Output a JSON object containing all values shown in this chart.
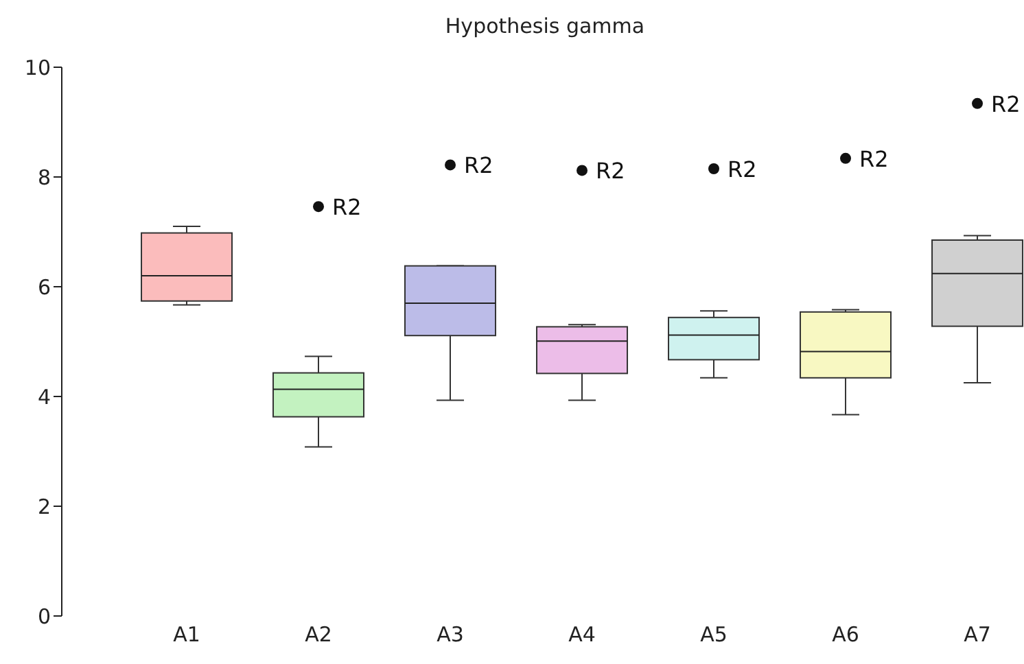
{
  "chart_data": {
    "type": "box",
    "title": "Hypothesis gamma",
    "categories": [
      "A1",
      "A2",
      "A3",
      "A4",
      "A5",
      "A6",
      "A7"
    ],
    "colors": [
      "#fbbcbc",
      "#c3f2c0",
      "#bcbce8",
      "#ecbde8",
      "#cff2ef",
      "#f8f8c2",
      "#d0d0d0"
    ],
    "boxes": [
      {
        "low": 5.67,
        "q1": 5.74,
        "median": 6.2,
        "q3": 6.98,
        "high": 7.1
      },
      {
        "low": 3.08,
        "q1": 3.63,
        "median": 4.13,
        "q3": 4.43,
        "high": 4.73,
        "outliers": [
          7.46
        ]
      },
      {
        "low": 3.93,
        "q1": 5.11,
        "median": 5.7,
        "q3": 6.38,
        "high": 6.38,
        "outliers": [
          8.22
        ]
      },
      {
        "low": 3.93,
        "q1": 4.42,
        "median": 5.01,
        "q3": 5.27,
        "high": 5.31,
        "outliers": [
          8.12
        ]
      },
      {
        "low": 4.34,
        "q1": 4.67,
        "median": 5.12,
        "q3": 5.44,
        "high": 5.56,
        "outliers": [
          8.15
        ]
      },
      {
        "low": 3.67,
        "q1": 4.34,
        "median": 4.82,
        "q3": 5.54,
        "high": 5.58,
        "outliers": [
          8.34
        ]
      },
      {
        "low": 4.25,
        "q1": 5.28,
        "median": 6.24,
        "q3": 6.85,
        "high": 6.93,
        "outliers": [
          9.34
        ]
      }
    ],
    "annotations": [
      "R2",
      "R2",
      "R2",
      "R2",
      "R2",
      "R2"
    ],
    "ylim": [
      0,
      10
    ],
    "yticks": [
      0,
      2,
      4,
      6,
      8,
      10
    ],
    "grid": false,
    "legend": false,
    "marker": "circle"
  }
}
